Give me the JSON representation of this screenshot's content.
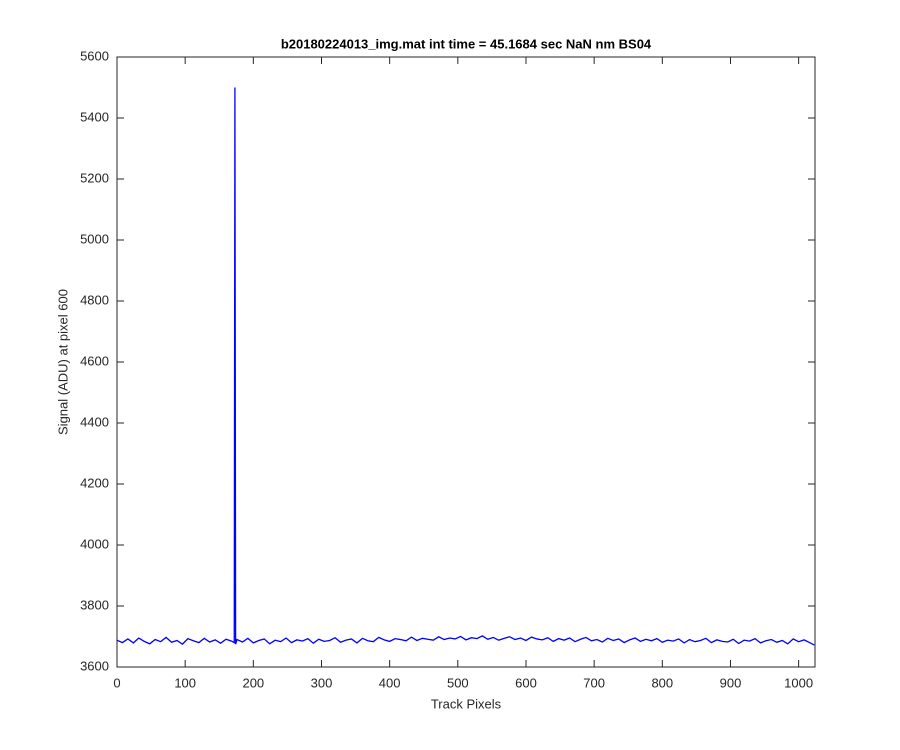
{
  "chart_data": {
    "type": "line",
    "title": "b20180224013_img.mat int time = 45.1684 sec  NaN nm BS04",
    "x_label": "Track Pixels",
    "y_label": "Signal (ADU) at pixel 600",
    "xlim": [
      0,
      1024
    ],
    "ylim": [
      3600,
      5600
    ],
    "xticks": [
      0,
      100,
      200,
      300,
      400,
      500,
      600,
      700,
      800,
      900,
      1000
    ],
    "yticks": [
      3600,
      3800,
      4000,
      4200,
      4400,
      4600,
      4800,
      5000,
      5200,
      5400,
      5600
    ],
    "grid": false,
    "series": [
      {
        "color": "#0000ff",
        "x": [
          0,
          8,
          16,
          24,
          32,
          40,
          48,
          56,
          64,
          72,
          80,
          88,
          96,
          104,
          112,
          120,
          128,
          136,
          144,
          152,
          160,
          168,
          172,
          173,
          174,
          176,
          184,
          192,
          200,
          208,
          216,
          224,
          232,
          240,
          248,
          256,
          264,
          272,
          280,
          288,
          296,
          304,
          312,
          320,
          328,
          336,
          344,
          352,
          360,
          368,
          376,
          384,
          392,
          400,
          408,
          416,
          424,
          432,
          440,
          448,
          456,
          464,
          472,
          480,
          488,
          496,
          504,
          512,
          520,
          528,
          536,
          544,
          552,
          560,
          568,
          576,
          584,
          592,
          600,
          608,
          616,
          624,
          632,
          640,
          648,
          656,
          664,
          672,
          680,
          688,
          696,
          704,
          712,
          720,
          728,
          736,
          744,
          752,
          760,
          768,
          776,
          784,
          792,
          800,
          808,
          816,
          824,
          832,
          840,
          848,
          856,
          864,
          872,
          880,
          888,
          896,
          904,
          912,
          920,
          928,
          936,
          944,
          952,
          960,
          968,
          976,
          984,
          992,
          1000,
          1008,
          1016,
          1023
        ],
        "values": [
          3688,
          3680,
          3692,
          3679,
          3695,
          3684,
          3676,
          3690,
          3683,
          3697,
          3681,
          3687,
          3675,
          3693,
          3686,
          3680,
          3694,
          3682,
          3689,
          3678,
          3691,
          3685,
          3680,
          5500,
          3675,
          3690,
          3682,
          3694,
          3679,
          3687,
          3692,
          3676,
          3688,
          3683,
          3695,
          3680,
          3689,
          3685,
          3693,
          3678,
          3691,
          3684,
          3687,
          3696,
          3681,
          3688,
          3692,
          3679,
          3694,
          3686,
          3683,
          3697,
          3689,
          3684,
          3693,
          3690,
          3686,
          3698,
          3687,
          3694,
          3691,
          3688,
          3699,
          3690,
          3695,
          3692,
          3700,
          3689,
          3696,
          3693,
          3702,
          3691,
          3697,
          3688,
          3694,
          3699,
          3690,
          3695,
          3687,
          3698,
          3692,
          3689,
          3696,
          3684,
          3693,
          3688,
          3695,
          3683,
          3691,
          3697,
          3686,
          3690,
          3682,
          3694,
          3687,
          3692,
          3680,
          3689,
          3695,
          3684,
          3691,
          3686,
          3693,
          3681,
          3688,
          3685,
          3692,
          3679,
          3690,
          3683,
          3687,
          3694,
          3680,
          3689,
          3684,
          3682,
          3691,
          3677,
          3688,
          3685,
          3693,
          3679,
          3686,
          3690,
          3681,
          3687,
          3676,
          3692,
          3683,
          3689,
          3680,
          3672
        ]
      }
    ]
  }
}
